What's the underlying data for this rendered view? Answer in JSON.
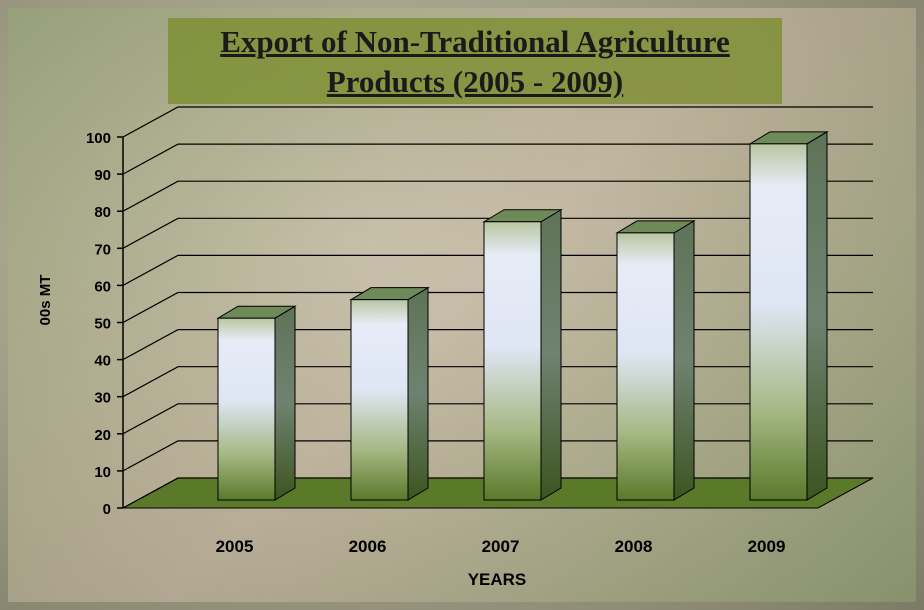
{
  "chart_data": {
    "type": "bar3d",
    "title": "Export of Non-Traditional Agriculture Products (2005 - 2009)",
    "x_label": "YEARS",
    "y_label": "00s MT",
    "categories": [
      "2005",
      "2006",
      "2007",
      "2008",
      "2009"
    ],
    "values": [
      49,
      54,
      75,
      72,
      96
    ],
    "color": "#5a7a2a",
    "ylim": [
      0,
      100
    ],
    "yticks": [
      0,
      10,
      20,
      30,
      40,
      50,
      60,
      70,
      80,
      90,
      100
    ],
    "grid": true
  }
}
